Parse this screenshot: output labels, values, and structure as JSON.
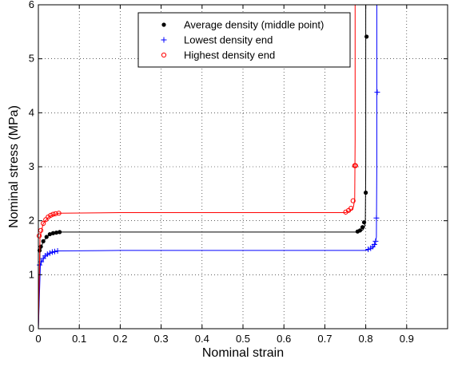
{
  "chart_data": {
    "type": "line",
    "xlabel": "Nominal strain",
    "ylabel": "Nominal stress (MPa)",
    "xlim": [
      0,
      1
    ],
    "ylim": [
      0,
      6
    ],
    "xticks": [
      0,
      0.1,
      0.2,
      0.3,
      0.4,
      0.5,
      0.6,
      0.7,
      0.8,
      0.9
    ],
    "xtick_labels": [
      "0",
      "0.1",
      "0.2",
      "0.3",
      "0.4",
      "0.5",
      "0.6",
      "0.7",
      "0.8",
      "0.9"
    ],
    "yticks": [
      0,
      1,
      2,
      3,
      4,
      5,
      6
    ],
    "ytick_labels": [
      "0",
      "1",
      "2",
      "3",
      "4",
      "5",
      "6"
    ],
    "grid": true,
    "legend_position": "top-center",
    "series": [
      {
        "name": "Average density (middle point)",
        "color": "#000000",
        "marker": "dot",
        "line": {
          "x": [
            0,
            0.004,
            0.012,
            0.025,
            0.05,
            0.2,
            0.5,
            0.78,
            0.787,
            0.793,
            0.797,
            0.799,
            0.8,
            0.8
          ],
          "y": [
            0,
            1.43,
            1.62,
            1.73,
            1.79,
            1.79,
            1.79,
            1.79,
            1.8,
            1.83,
            1.88,
            2.0,
            3.0,
            6
          ]
        },
        "points": {
          "x": [
            0.003,
            0.006,
            0.012,
            0.02,
            0.028,
            0.036,
            0.044,
            0.052,
            0.78,
            0.786,
            0.792,
            0.796,
            0.8,
            0.802
          ],
          "y": [
            1.45,
            1.52,
            1.62,
            1.7,
            1.75,
            1.77,
            1.78,
            1.79,
            1.8,
            1.82,
            1.88,
            1.97,
            2.52,
            5.41
          ]
        }
      },
      {
        "name": "Lowest density end",
        "color": "#0000ff",
        "marker": "plus",
        "line": {
          "x": [
            0,
            0.005,
            0.015,
            0.03,
            0.05,
            0.2,
            0.5,
            0.8,
            0.81,
            0.818,
            0.823,
            0.826,
            0.827,
            0.827
          ],
          "y": [
            0,
            1.2,
            1.33,
            1.4,
            1.44,
            1.45,
            1.45,
            1.45,
            1.47,
            1.5,
            1.56,
            1.7,
            3.0,
            6
          ]
        },
        "points": {
          "x": [
            0.003,
            0.007,
            0.012,
            0.017,
            0.022,
            0.028,
            0.034,
            0.04,
            0.047,
            0.806,
            0.812,
            0.817,
            0.821,
            0.824,
            0.826,
            0.828
          ],
          "y": [
            1.18,
            1.24,
            1.3,
            1.35,
            1.38,
            1.4,
            1.42,
            1.43,
            1.44,
            1.47,
            1.49,
            1.52,
            1.56,
            1.62,
            2.05,
            4.38
          ]
        }
      },
      {
        "name": "Highest density end",
        "color": "#ff0000",
        "marker": "circle",
        "line": {
          "x": [
            0,
            0.004,
            0.012,
            0.025,
            0.05,
            0.2,
            0.5,
            0.75,
            0.758,
            0.765,
            0.77,
            0.773,
            0.774,
            0.774
          ],
          "y": [
            0,
            1.7,
            1.95,
            2.07,
            2.14,
            2.15,
            2.15,
            2.15,
            2.17,
            2.2,
            2.26,
            2.4,
            3.5,
            6
          ]
        },
        "points": {
          "x": [
            0.002,
            0.006,
            0.012,
            0.018,
            0.024,
            0.03,
            0.036,
            0.042,
            0.05,
            0.751,
            0.758,
            0.764,
            0.769,
            0.773,
            0.775
          ],
          "y": [
            1.72,
            1.82,
            1.95,
            2.02,
            2.07,
            2.1,
            2.12,
            2.13,
            2.14,
            2.16,
            2.19,
            2.23,
            2.37,
            3.02,
            3.02
          ]
        }
      }
    ]
  }
}
